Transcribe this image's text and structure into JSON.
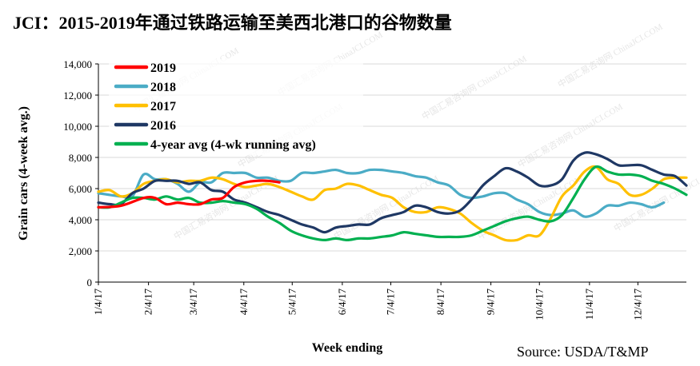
{
  "title": "JCI：2015-2019年通过铁路运输至美西北港口的谷物数量",
  "source": "Source: USDA/T&MP",
  "chart_data": {
    "type": "line",
    "title": "JCI：2015-2019年通过铁路运输至美西北港口的谷物数量",
    "xlabel": "Week ending",
    "ylabel": "Grain cars (4-week avg.)",
    "ylim": [
      0,
      14000
    ],
    "yticks": [
      0,
      2000,
      4000,
      6000,
      8000,
      10000,
      12000,
      14000
    ],
    "ytick_labels": [
      "0",
      "2,000",
      "4,000",
      "6,000",
      "8,000",
      "10,000",
      "12,000",
      "14,000"
    ],
    "xlim": [
      0,
      52
    ],
    "xticks": [
      0,
      4.43,
      8.43,
      12.86,
      17.14,
      21.57,
      25.86,
      30.29,
      34.71,
      39,
      43.43,
      47.71
    ],
    "xtick_labels": [
      "1/4/17",
      "2/4/17",
      "3/4/17",
      "4/4/17",
      "5/4/17",
      "6/4/17",
      "7/4/17",
      "8/4/17",
      "9/4/17",
      "10/4/17",
      "11/4/17",
      "12/4/17"
    ],
    "grid": "horizontal",
    "legend_position": "top-left",
    "watermark": "中国汇易咨询网 ChinaJCI.COM",
    "series": [
      {
        "name": "2019",
        "color": "#ff0000",
        "x": [
          0,
          2,
          4,
          5,
          6,
          7,
          8,
          9,
          10,
          11,
          12,
          13,
          14,
          15,
          16
        ],
        "y": [
          4800,
          4900,
          5400,
          5400,
          5000,
          5100,
          5000,
          5000,
          5300,
          5400,
          6100,
          6400,
          6500,
          6500,
          6400
        ]
      },
      {
        "name": "2018",
        "color": "#4bacc6",
        "x": [
          0,
          2,
          3,
          4,
          5,
          6,
          7,
          8,
          9,
          10,
          11,
          12,
          13,
          14,
          15,
          16,
          17,
          18,
          19,
          20,
          21,
          22,
          23,
          24,
          25,
          26,
          27,
          28,
          29,
          30,
          31,
          32,
          33,
          34,
          35,
          36,
          37,
          38,
          39,
          40,
          41,
          42,
          43,
          44,
          45,
          46,
          47,
          48,
          49,
          50
        ],
        "y": [
          5700,
          5500,
          5500,
          6900,
          6600,
          6600,
          6300,
          5800,
          6400,
          6400,
          7000,
          7000,
          7000,
          6700,
          6700,
          6500,
          6500,
          7000,
          7000,
          7100,
          7200,
          7000,
          7000,
          7200,
          7200,
          7100,
          7000,
          6800,
          6700,
          6400,
          6200,
          5600,
          5400,
          5500,
          5700,
          5700,
          5300,
          5000,
          4500,
          4300,
          4400,
          4600,
          4200,
          4400,
          4900,
          4900,
          5100,
          5000,
          4800,
          5100
        ]
      },
      {
        "name": "2017",
        "color": "#ffc000",
        "x": [
          0,
          1,
          2,
          3,
          4,
          5,
          6,
          7,
          8,
          9,
          10,
          11,
          12,
          13,
          14,
          15,
          16,
          17,
          18,
          19,
          20,
          21,
          22,
          23,
          24,
          25,
          26,
          27,
          28,
          29,
          30,
          31,
          32,
          33,
          34,
          35,
          36,
          37,
          38,
          39,
          40,
          41,
          42,
          43,
          44,
          45,
          46,
          47,
          48,
          49,
          50,
          51,
          52
        ],
        "y": [
          5800,
          5900,
          5500,
          5700,
          6300,
          6500,
          6600,
          6400,
          6500,
          6500,
          6700,
          6600,
          6300,
          6100,
          6200,
          6300,
          6100,
          5800,
          5500,
          5300,
          5900,
          6000,
          6300,
          6200,
          5900,
          5600,
          5400,
          4800,
          4500,
          4500,
          4800,
          4700,
          4400,
          3800,
          3300,
          3000,
          2700,
          2700,
          3000,
          3000,
          4100,
          5500,
          6200,
          7100,
          7400,
          6600,
          6300,
          5600,
          5600,
          6000,
          6600,
          6700,
          6700
        ]
      },
      {
        "name": "2016",
        "color": "#1f3864",
        "x": [
          0,
          1,
          2,
          3,
          4,
          5,
          6,
          7,
          8,
          9,
          10,
          11,
          12,
          13,
          14,
          15,
          16,
          17,
          18,
          19,
          20,
          21,
          22,
          23,
          24,
          25,
          26,
          27,
          28,
          29,
          30,
          31,
          32,
          33,
          34,
          35,
          36,
          37,
          38,
          39,
          40,
          41,
          42,
          43,
          44,
          45,
          46,
          47,
          48,
          49,
          50,
          51,
          52
        ],
        "y": [
          5100,
          5000,
          5000,
          5700,
          6000,
          6500,
          6500,
          6500,
          6300,
          6400,
          5900,
          5800,
          5300,
          5100,
          4800,
          4500,
          4300,
          4000,
          3700,
          3500,
          3200,
          3500,
          3600,
          3700,
          3700,
          4100,
          4300,
          4500,
          4900,
          4800,
          4500,
          4400,
          4600,
          5300,
          6200,
          6800,
          7300,
          7100,
          6700,
          6200,
          6200,
          6600,
          7800,
          8300,
          8200,
          7900,
          7500,
          7500,
          7500,
          7200,
          6900,
          6800,
          6200
        ]
      },
      {
        "name": "4-year avg (4-wk running avg)",
        "color": "#00b050",
        "x": [
          0,
          1,
          2,
          3,
          4,
          5,
          6,
          7,
          8,
          9,
          10,
          11,
          12,
          13,
          14,
          15,
          16,
          17,
          18,
          19,
          20,
          21,
          22,
          23,
          24,
          25,
          26,
          27,
          28,
          29,
          30,
          31,
          32,
          33,
          34,
          35,
          36,
          37,
          38,
          39,
          40,
          41,
          42,
          43,
          44,
          45,
          46,
          47,
          48,
          49,
          50,
          51,
          52
        ],
        "y": [
          4800,
          4800,
          5100,
          5400,
          5400,
          5300,
          5500,
          5300,
          5400,
          5100,
          5100,
          5200,
          5100,
          5000,
          4700,
          4200,
          3800,
          3300,
          3000,
          2800,
          2700,
          2800,
          2700,
          2800,
          2800,
          2900,
          3000,
          3200,
          3100,
          3000,
          2900,
          2900,
          2900,
          3000,
          3300,
          3600,
          3900,
          4100,
          4200,
          4000,
          3900,
          4300,
          5400,
          6600,
          7400,
          7100,
          6900,
          6900,
          6800,
          6500,
          6300,
          6000,
          5600
        ]
      }
    ]
  }
}
